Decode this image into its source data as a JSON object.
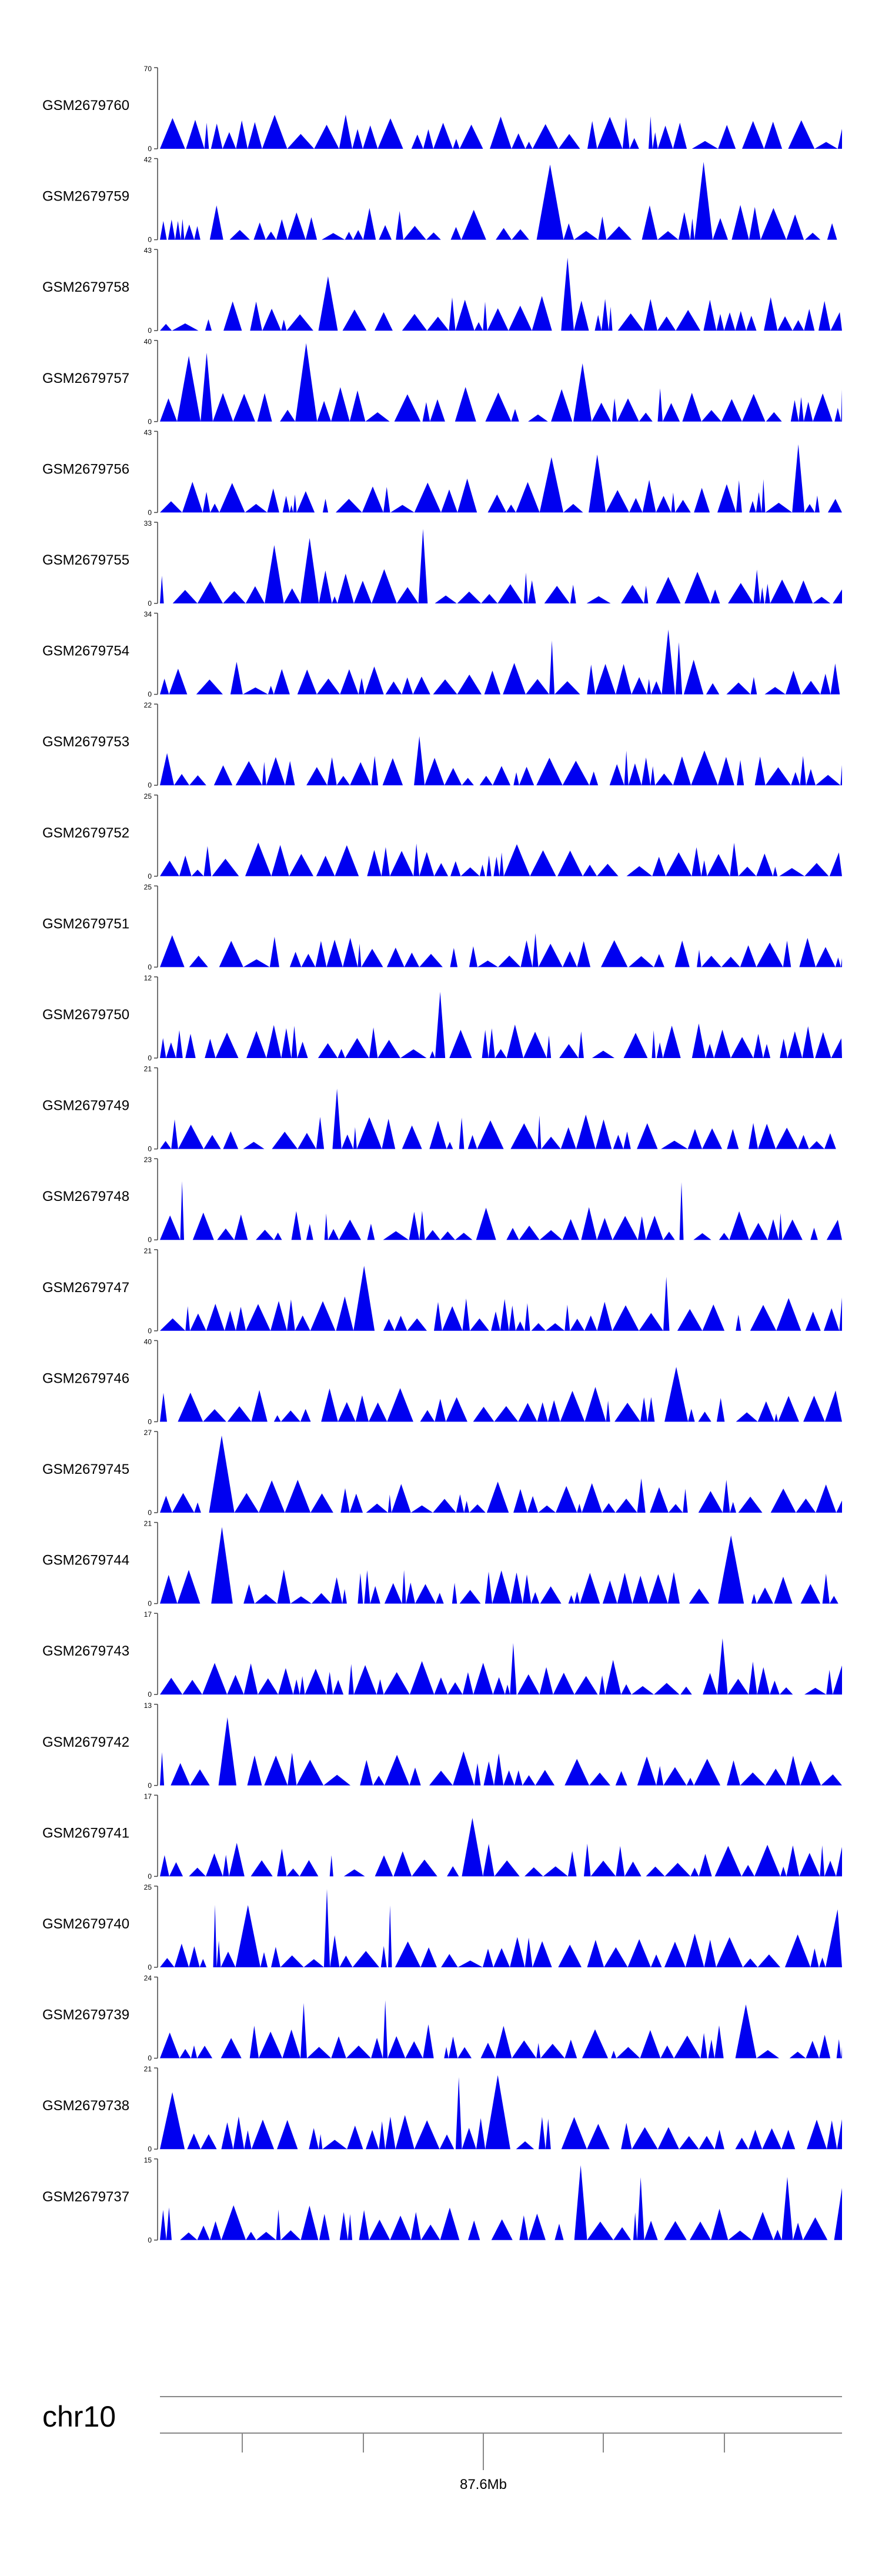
{
  "chart_data": {
    "type": "area",
    "color": "#0000f0",
    "samples": [
      {
        "name": "GSM2679760",
        "ymax": "70",
        "ymin": "0",
        "seed": 11
      },
      {
        "name": "GSM2679759",
        "ymax": "42",
        "ymin": "0",
        "seed": 12
      },
      {
        "name": "GSM2679758",
        "ymax": "43",
        "ymin": "0",
        "seed": 13
      },
      {
        "name": "GSM2679757",
        "ymax": "40",
        "ymin": "0",
        "seed": 14
      },
      {
        "name": "GSM2679756",
        "ymax": "43",
        "ymin": "0",
        "seed": 15
      },
      {
        "name": "GSM2679755",
        "ymax": "33",
        "ymin": "0",
        "seed": 16
      },
      {
        "name": "GSM2679754",
        "ymax": "34",
        "ymin": "0",
        "seed": 17
      },
      {
        "name": "GSM2679753",
        "ymax": "22",
        "ymin": "0",
        "seed": 18
      },
      {
        "name": "GSM2679752",
        "ymax": "25",
        "ymin": "0",
        "seed": 19
      },
      {
        "name": "GSM2679751",
        "ymax": "25",
        "ymin": "0",
        "seed": 20
      },
      {
        "name": "GSM2679750",
        "ymax": "12",
        "ymin": "0",
        "seed": 21
      },
      {
        "name": "GSM2679749",
        "ymax": "21",
        "ymin": "0",
        "seed": 22
      },
      {
        "name": "GSM2679748",
        "ymax": "23",
        "ymin": "0",
        "seed": 23
      },
      {
        "name": "GSM2679747",
        "ymax": "21",
        "ymin": "0",
        "seed": 24
      },
      {
        "name": "GSM2679746",
        "ymax": "40",
        "ymin": "0",
        "seed": 25
      },
      {
        "name": "GSM2679745",
        "ymax": "27",
        "ymin": "0",
        "seed": 26
      },
      {
        "name": "GSM2679744",
        "ymax": "21",
        "ymin": "0",
        "seed": 27
      },
      {
        "name": "GSM2679743",
        "ymax": "17",
        "ymin": "0",
        "seed": 28
      },
      {
        "name": "GSM2679742",
        "ymax": "13",
        "ymin": "0",
        "seed": 29
      },
      {
        "name": "GSM2679741",
        "ymax": "17",
        "ymin": "0",
        "seed": 30
      },
      {
        "name": "GSM2679740",
        "ymax": "25",
        "ymin": "0",
        "seed": 31
      },
      {
        "name": "GSM2679739",
        "ymax": "24",
        "ymin": "0",
        "seed": 32
      },
      {
        "name": "GSM2679738",
        "ymax": "21",
        "ymin": "0",
        "seed": 33
      },
      {
        "name": "GSM2679737",
        "ymax": "15",
        "ymin": "0",
        "seed": 34
      }
    ],
    "axis": {
      "chromosome": "chr10",
      "tick_label": "87.6Mb"
    }
  }
}
